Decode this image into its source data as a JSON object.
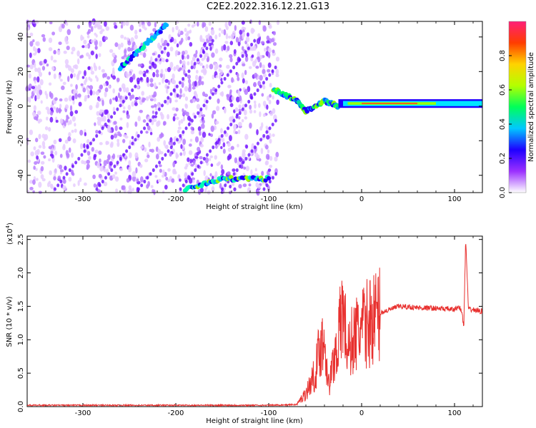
{
  "title": "C2E2.2022.316.12.21.G13",
  "chart_data": [
    {
      "type": "heatmap",
      "xlabel": "Height of straight line (km)",
      "ylabel": "Frequency (Hz)",
      "xlim": [
        -360,
        130
      ],
      "ylim": [
        -50,
        49
      ],
      "xticks": [
        -300,
        -200,
        -100,
        0,
        100
      ],
      "yticks": [
        -40,
        -20,
        0,
        20,
        40
      ],
      "colorbar": {
        "label": "Normalized spectral amplitude",
        "range": [
          0.0,
          1.0
        ],
        "ticks": [
          "0.0",
          "0.2",
          "0.4",
          "0.6",
          "0.8"
        ],
        "colors": [
          "#ffffff",
          "#9b30ff",
          "#1e00ff",
          "#00c8ff",
          "#00ff5a",
          "#b4ff00",
          "#ffd200",
          "#ff3c00",
          "#ff1e78"
        ]
      },
      "features": {
        "noise_region_x": [
          -360,
          -90
        ],
        "diagonal_trace": [
          [
            -260,
            22
          ],
          [
            -210,
            47
          ]
        ],
        "lower_band": [
          [
            -190,
            -48
          ],
          [
            -150,
            -42
          ],
          [
            -100,
            -42
          ]
        ],
        "carrier_transition": [
          [
            -95,
            10
          ],
          [
            -70,
            3
          ],
          [
            -60,
            -3
          ],
          [
            -40,
            3
          ],
          [
            -25,
            0
          ]
        ],
        "carrier_band": [
          [
            -25,
            1
          ],
          [
            130,
            2
          ]
        ]
      }
    },
    {
      "type": "line",
      "xlabel": "Height of straight line (km)",
      "ylabel": "SNR (10 * v/v)",
      "yscale_label": "(x10",
      "yscale_exp": "4",
      "yscale_close": ")",
      "xlim": [
        -360,
        130
      ],
      "ylim": [
        0.0,
        2.55
      ],
      "xticks": [
        -300,
        -200,
        -100,
        0,
        100
      ],
      "yticks": [
        "0.0",
        "0.5",
        "1.0",
        "1.5",
        "2.0",
        "2.5"
      ],
      "line_color": "#e8302e",
      "series": [
        {
          "x": [
            -360,
            -300,
            -200,
            -100,
            -70,
            -60,
            -50,
            -45,
            -40,
            -35,
            -30,
            -25,
            -20,
            -15,
            -10,
            -5,
            0,
            10,
            20,
            30,
            40,
            60,
            80,
            100,
            105,
            108,
            110,
            112,
            115,
            120,
            130
          ],
          "values": [
            0.02,
            0.02,
            0.02,
            0.02,
            0.03,
            0.2,
            0.5,
            0.9,
            1.0,
            0.3,
            0.7,
            1.0,
            1.5,
            0.8,
            1.0,
            1.1,
            1.15,
            1.3,
            1.4,
            1.45,
            1.5,
            1.48,
            1.47,
            1.45,
            1.5,
            1.4,
            1.2,
            2.5,
            1.45,
            1.45,
            1.42
          ]
        }
      ]
    }
  ]
}
